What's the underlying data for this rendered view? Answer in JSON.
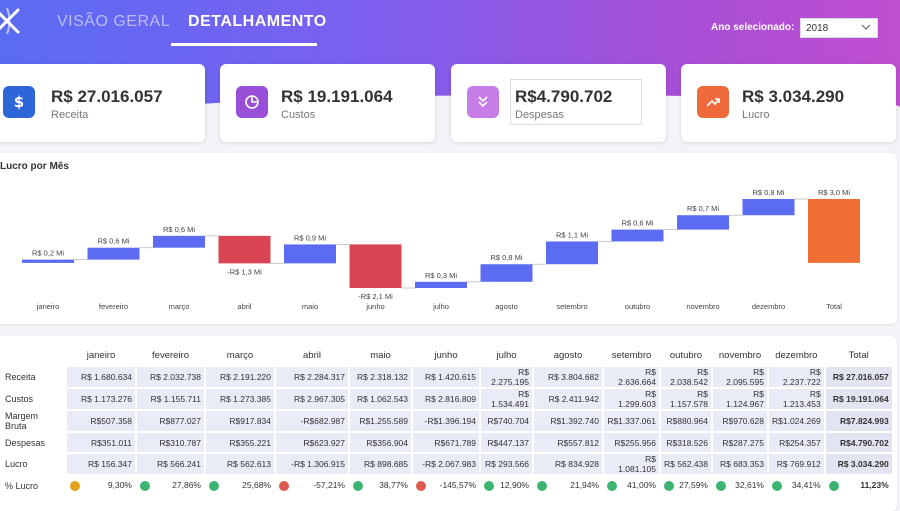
{
  "header": {
    "tabs": [
      {
        "label": "VISÃO GERAL"
      },
      {
        "label": "DETALHAMENTO"
      }
    ],
    "year_label": "Ano selecionado:",
    "year_value": "2018"
  },
  "colors": {
    "positive": "#5b6cf2",
    "negative": "#d94452",
    "total": "#ef6f35",
    "green": "#3cb371",
    "red": "#e05a4f",
    "amber": "#e3a21a"
  },
  "kpis": [
    {
      "value": "R$ 27.016.057",
      "label": "Receita",
      "icon": "dollar-icon",
      "color": "#2d66d8"
    },
    {
      "value": "R$ 19.191.064",
      "label": "Custos",
      "icon": "pie-chart-icon",
      "color": "#9a4fd8"
    },
    {
      "value": "R$4.790.702",
      "label": "Despesas",
      "icon": "double-chevron-down-icon",
      "color": "#c77de8"
    },
    {
      "value": "R$ 3.034.290",
      "label": "Lucro",
      "icon": "trending-up-icon",
      "color": "#ee6a3c"
    }
  ],
  "chart_data": {
    "type": "bar",
    "title": "Lucro por Mês",
    "categories": [
      "janeiro",
      "fevereiro",
      "março",
      "abril",
      "maio",
      "junho",
      "julho",
      "agosto",
      "setembro",
      "outubro",
      "novembro",
      "dezembro",
      "Total"
    ],
    "values": [
      0.156,
      0.566,
      0.563,
      -1.307,
      0.899,
      -2.068,
      0.294,
      0.835,
      1.081,
      0.562,
      0.683,
      0.77,
      3.034
    ],
    "data_labels": [
      "R$ 0,2 Mi",
      "R$ 0,6 Mi",
      "R$ 0,6 Mi",
      "-R$ 1,3 Mi",
      "R$ 0,9 Mi",
      "-R$ 2,1 Mi",
      "R$ 0,3 Mi",
      "R$ 0,8 Mi",
      "R$ 1,1 Mi",
      "R$ 0,6 Mi",
      "R$ 0,7 Mi",
      "R$ 0,8 Mi",
      "R$ 3,0 Mi"
    ],
    "xlabel": "",
    "ylabel": ""
  },
  "table": {
    "columns": [
      "janeiro",
      "fevereiro",
      "março",
      "abril",
      "maio",
      "junho",
      "julho",
      "agosto",
      "setembro",
      "outubro",
      "novembro",
      "dezembro",
      "Total"
    ],
    "rows": [
      {
        "label": "Receita",
        "values": [
          "R$ 1.680.634",
          "R$ 2.032.738",
          "R$ 2.191.220",
          "R$ 2.284.317",
          "R$ 2.318.132",
          "R$ 1.420.615",
          "R$ 2.275.195",
          "R$ 3.804.682",
          "R$ 2.636.664",
          "R$ 2.038.542",
          "R$ 2.095.595",
          "R$ 2.237.722",
          "R$ 27.016.057"
        ]
      },
      {
        "label": "Custos",
        "values": [
          "R$ 1.173.276",
          "R$ 1.155.711",
          "R$ 1.273.385",
          "R$ 2.967.305",
          "R$ 1.062.543",
          "R$ 2.816.809",
          "R$ 1.534.491",
          "R$ 2.411.942",
          "R$ 1.299.603",
          "R$ 1.157.578",
          "R$ 1.124.967",
          "R$ 1.213.453",
          "R$ 19.191.064"
        ]
      },
      {
        "label": "Margem Bruta",
        "values": [
          "R$507.358",
          "R$877.027",
          "R$917.834",
          "-R$682.987",
          "R$1.255.589",
          "-R$1.396.194",
          "R$740.704",
          "R$1.392.740",
          "R$1.337.061",
          "R$880.964",
          "R$970.628",
          "R$1.024.269",
          "R$7.824.993"
        ]
      },
      {
        "label": "Despesas",
        "values": [
          "R$351.011",
          "R$310.787",
          "R$355.221",
          "R$623.927",
          "R$356.904",
          "R$671.789",
          "R$447.137",
          "R$557.812",
          "R$255.956",
          "R$318.526",
          "R$287.275",
          "R$254.357",
          "R$4.790.702"
        ]
      },
      {
        "label": "Lucro",
        "values": [
          "R$ 156.347",
          "R$ 566.241",
          "R$ 562.613",
          "-R$ 1.306.915",
          "R$ 898.685",
          "-R$ 2.067.983",
          "R$ 293.566",
          "R$ 834.928",
          "R$ 1.081.105",
          "R$ 562.438",
          "R$ 683.353",
          "R$ 769.912",
          "R$ 3.034.290"
        ]
      }
    ],
    "pct_row": {
      "label": "% Lucro",
      "values": [
        "9,30%",
        "27,86%",
        "25,68%",
        "-57,21%",
        "38,77%",
        "-145,57%",
        "12,90%",
        "21,94%",
        "41,00%",
        "27,59%",
        "32,61%",
        "34,41%",
        "11,23%"
      ],
      "status": [
        "amber",
        "green",
        "green",
        "red",
        "green",
        "red",
        "green",
        "green",
        "green",
        "green",
        "green",
        "green",
        "green"
      ]
    }
  }
}
